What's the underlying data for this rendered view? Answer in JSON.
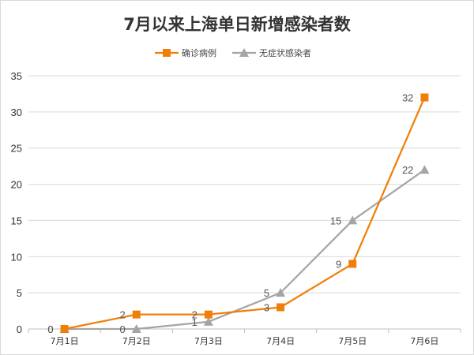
{
  "chart_data": {
    "type": "line",
    "title": "7月以来上海单日新增感染者数",
    "categories": [
      "7月1日",
      "7月2日",
      "7月3日",
      "7月4日",
      "7月5日",
      "7月6日"
    ],
    "ylim": [
      0,
      35
    ],
    "yticks": [
      0,
      5,
      10,
      15,
      20,
      25,
      30,
      35
    ],
    "grid": true,
    "legend_position": "top",
    "series": [
      {
        "name": "确诊病例",
        "values": [
          0,
          2,
          2,
          3,
          9,
          32
        ],
        "color": "#f07f09",
        "marker": "square",
        "data_labels": true
      },
      {
        "name": "无症状感染者",
        "values": [
          0,
          0,
          1,
          5,
          15,
          22
        ],
        "color": "#a5a5a5",
        "marker": "triangle",
        "data_labels": true
      }
    ]
  }
}
